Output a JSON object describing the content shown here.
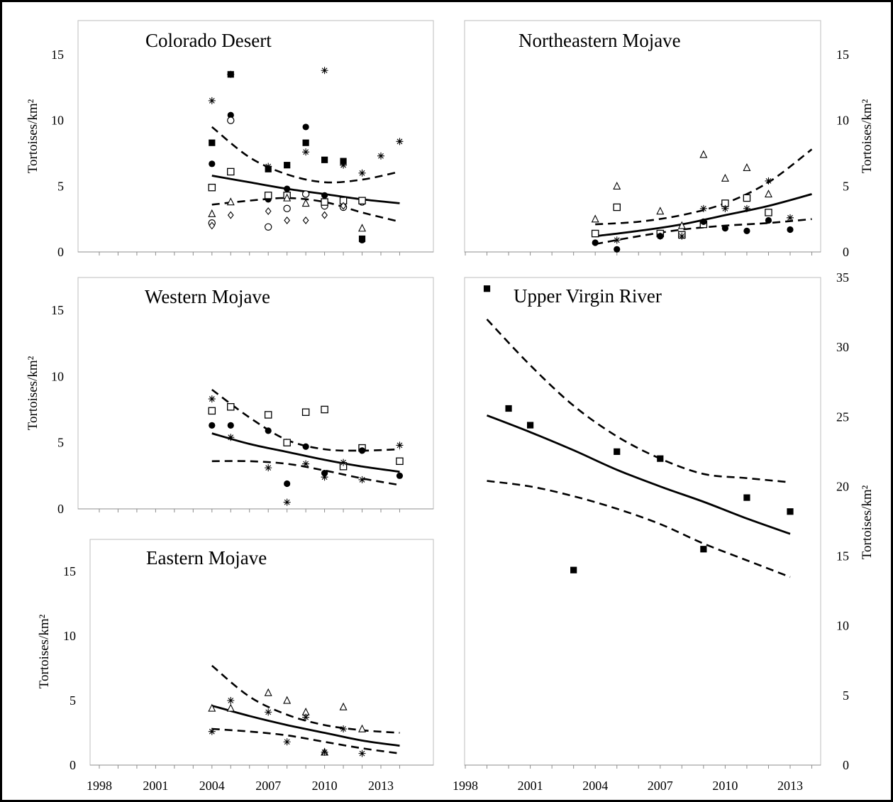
{
  "chart_data": [
    {
      "type": "scatter",
      "title": "Colorado Desert",
      "ylabel": "Tortoises/km²",
      "xlim": [
        1998,
        2014.5
      ],
      "ylim": [
        0,
        17.5
      ],
      "yticks": [
        0,
        5,
        10,
        15
      ],
      "x_axis_side": "none",
      "y_axis_side": "left",
      "series": [
        {
          "marker": "filled-square",
          "x": [
            2004,
            2005,
            2007,
            2008,
            2009,
            2010,
            2011,
            2012
          ],
          "y": [
            8.3,
            13.5,
            6.3,
            6.6,
            8.3,
            7.0,
            6.9,
            1.0
          ]
        },
        {
          "marker": "asterisk",
          "x": [
            2004,
            2005,
            2007,
            2008,
            2009,
            2010,
            2011,
            2012,
            2013,
            2014
          ],
          "y": [
            11.5,
            13.5,
            6.5,
            4.2,
            7.6,
            13.8,
            6.6,
            6.0,
            7.3,
            8.4
          ]
        },
        {
          "marker": "filled-circle",
          "x": [
            2004,
            2005,
            2007,
            2008,
            2009,
            2010,
            2011,
            2012
          ],
          "y": [
            6.7,
            10.4,
            4.0,
            4.8,
            9.5,
            4.3,
            4.0,
            0.9
          ]
        },
        {
          "marker": "open-circle",
          "x": [
            2004,
            2005,
            2007,
            2008,
            2009,
            2010,
            2011,
            2012
          ],
          "y": [
            2.2,
            10.0,
            1.9,
            3.3,
            4.4,
            3.5,
            3.4,
            3.8
          ]
        },
        {
          "marker": "open-square",
          "x": [
            2004,
            2005,
            2007,
            2008,
            2010,
            2011,
            2012
          ],
          "y": [
            4.9,
            6.1,
            4.3,
            4.3,
            3.8,
            3.9,
            3.9
          ]
        },
        {
          "marker": "open-triangle",
          "x": [
            2004,
            2005,
            2008,
            2009,
            2012
          ],
          "y": [
            2.9,
            3.8,
            4.1,
            3.7,
            1.8
          ]
        },
        {
          "marker": "open-diamond",
          "x": [
            2004,
            2005,
            2007,
            2008,
            2009,
            2010,
            2011
          ],
          "y": [
            2.0,
            2.8,
            3.1,
            2.4,
            2.4,
            2.8,
            3.5
          ]
        }
      ],
      "trend": {
        "x": [
          2004,
          2006,
          2008,
          2010,
          2012,
          2014
        ],
        "y": [
          5.8,
          5.3,
          4.8,
          4.4,
          4.0,
          3.7
        ]
      },
      "ci_upper": {
        "x": [
          2004,
          2006,
          2008,
          2010,
          2012,
          2014
        ],
        "y": [
          9.5,
          7.2,
          5.9,
          5.3,
          5.5,
          6.1
        ]
      },
      "ci_lower": {
        "x": [
          2004,
          2006,
          2008,
          2010,
          2012,
          2014
        ],
        "y": [
          3.6,
          3.9,
          4.1,
          3.8,
          3.0,
          2.3
        ]
      }
    },
    {
      "type": "scatter",
      "title": "Northeastern Mojave",
      "ylabel": "Tortoises/km²",
      "xlim": [
        1998,
        2014.5
      ],
      "ylim": [
        0,
        17.5
      ],
      "yticks": [
        0,
        5,
        10,
        15
      ],
      "x_axis_side": "none",
      "y_axis_side": "right",
      "series": [
        {
          "marker": "open-triangle",
          "x": [
            2004,
            2005,
            2007,
            2008,
            2009,
            2010,
            2011,
            2012
          ],
          "y": [
            2.5,
            5.0,
            3.1,
            2.0,
            7.4,
            5.6,
            6.4,
            4.4
          ]
        },
        {
          "marker": "open-square",
          "x": [
            2004,
            2005,
            2007,
            2008,
            2009,
            2010,
            2011,
            2012
          ],
          "y": [
            1.4,
            3.4,
            1.4,
            1.3,
            2.1,
            3.7,
            4.1,
            3.0
          ]
        },
        {
          "marker": "asterisk",
          "x": [
            2005,
            2007,
            2008,
            2009,
            2010,
            2011,
            2012,
            2013
          ],
          "y": [
            0.9,
            1.2,
            1.2,
            3.3,
            3.3,
            3.3,
            5.4,
            2.6
          ]
        },
        {
          "marker": "filled-circle",
          "x": [
            2004,
            2005,
            2007,
            2009,
            2010,
            2011,
            2012,
            2013
          ],
          "y": [
            0.7,
            0.2,
            1.2,
            2.3,
            1.8,
            1.6,
            2.4,
            1.7
          ]
        }
      ],
      "trend": {
        "x": [
          2004,
          2006,
          2008,
          2010,
          2012,
          2014
        ],
        "y": [
          1.2,
          1.6,
          2.1,
          2.8,
          3.5,
          4.4
        ]
      },
      "ci_upper": {
        "x": [
          2004,
          2006,
          2008,
          2010,
          2012,
          2014
        ],
        "y": [
          2.1,
          2.3,
          2.8,
          3.7,
          5.3,
          7.8
        ]
      },
      "ci_lower": {
        "x": [
          2004,
          2006,
          2008,
          2010,
          2012,
          2014
        ],
        "y": [
          0.6,
          1.2,
          1.7,
          2.0,
          2.2,
          2.5
        ]
      }
    },
    {
      "type": "scatter",
      "title": "Western Mojave",
      "ylabel": "Tortoises/km²",
      "xlim": [
        1998,
        2014.5
      ],
      "ylim": [
        0,
        17.5
      ],
      "yticks": [
        0,
        5,
        10,
        15
      ],
      "x_axis_side": "none",
      "y_axis_side": "left",
      "series": [
        {
          "marker": "open-square",
          "x": [
            2004,
            2005,
            2007,
            2008,
            2009,
            2010,
            2011,
            2012,
            2014
          ],
          "y": [
            7.4,
            7.7,
            7.1,
            5.0,
            7.3,
            7.5,
            3.2,
            4.6,
            3.6
          ]
        },
        {
          "marker": "asterisk",
          "x": [
            2004,
            2005,
            2007,
            2008,
            2009,
            2010,
            2011,
            2012,
            2014
          ],
          "y": [
            8.3,
            5.4,
            3.1,
            0.5,
            3.4,
            2.4,
            3.5,
            2.2,
            4.8
          ]
        },
        {
          "marker": "filled-circle",
          "x": [
            2004,
            2005,
            2007,
            2008,
            2009,
            2010,
            2012,
            2014
          ],
          "y": [
            6.3,
            6.3,
            5.9,
            1.9,
            4.7,
            2.7,
            4.4,
            2.5
          ]
        }
      ],
      "trend": {
        "x": [
          2004,
          2006,
          2008,
          2010,
          2012,
          2014
        ],
        "y": [
          5.7,
          4.9,
          4.3,
          3.7,
          3.2,
          2.8
        ]
      },
      "ci_upper": {
        "x": [
          2004,
          2006,
          2008,
          2010,
          2012,
          2014
        ],
        "y": [
          9.0,
          6.9,
          5.2,
          4.5,
          4.4,
          4.5
        ]
      },
      "ci_lower": {
        "x": [
          2004,
          2006,
          2008,
          2010,
          2012,
          2014
        ],
        "y": [
          3.6,
          3.6,
          3.4,
          2.9,
          2.3,
          1.8
        ]
      }
    },
    {
      "type": "scatter",
      "title": "Eastern Mojave",
      "ylabel": "Tortoises/km²",
      "xlim": [
        1998,
        2014.5
      ],
      "ylim": [
        0,
        17.5
      ],
      "yticks": [
        0,
        5,
        10,
        15
      ],
      "xticks": [
        1998,
        2001,
        2004,
        2007,
        2010,
        2013
      ],
      "x_axis_side": "bottom",
      "y_axis_side": "left",
      "series": [
        {
          "marker": "open-triangle",
          "x": [
            2004,
            2005,
            2007,
            2008,
            2009,
            2010,
            2011,
            2012
          ],
          "y": [
            4.4,
            4.4,
            5.6,
            5.0,
            4.1,
            1.0,
            4.5,
            2.8
          ]
        },
        {
          "marker": "asterisk",
          "x": [
            2004,
            2005,
            2007,
            2008,
            2009,
            2010,
            2011,
            2012
          ],
          "y": [
            2.6,
            5.0,
            4.1,
            1.8,
            3.7,
            1.0,
            2.8,
            0.9
          ]
        }
      ],
      "trend": {
        "x": [
          2004,
          2006,
          2008,
          2010,
          2012,
          2014
        ],
        "y": [
          4.6,
          3.8,
          3.1,
          2.5,
          1.9,
          1.5
        ]
      },
      "ci_upper": {
        "x": [
          2004,
          2006,
          2008,
          2010,
          2012,
          2014
        ],
        "y": [
          7.7,
          5.3,
          3.9,
          3.1,
          2.7,
          2.5
        ]
      },
      "ci_lower": {
        "x": [
          2004,
          2006,
          2008,
          2010,
          2012,
          2014
        ],
        "y": [
          2.8,
          2.6,
          2.3,
          1.8,
          1.3,
          0.9
        ]
      }
    },
    {
      "type": "scatter",
      "title": "Upper Virgin River",
      "ylabel": "Tortoises/km²",
      "xlim": [
        1998,
        2014.5
      ],
      "ylim": [
        0,
        35
      ],
      "yticks": [
        0,
        5,
        10,
        15,
        20,
        25,
        30,
        35
      ],
      "xticks": [
        1998,
        2001,
        2004,
        2007,
        2010,
        2013
      ],
      "x_axis_side": "bottom",
      "y_axis_side": "right",
      "series": [
        {
          "marker": "filled-square",
          "x": [
            1999,
            2000,
            2001,
            2003,
            2005,
            2007,
            2009,
            2011,
            2013
          ],
          "y": [
            34.2,
            25.6,
            24.4,
            14.0,
            22.5,
            22.0,
            15.5,
            19.2,
            18.2
          ]
        }
      ],
      "trend": {
        "x": [
          1999,
          2001,
          2003,
          2005,
          2007,
          2009,
          2011,
          2013
        ],
        "y": [
          25.1,
          23.9,
          22.6,
          21.2,
          20.0,
          18.9,
          17.7,
          16.6
        ]
      },
      "ci_upper": {
        "x": [
          1999,
          2001,
          2003,
          2005,
          2007,
          2009,
          2011,
          2013
        ],
        "y": [
          32.0,
          28.7,
          25.8,
          23.6,
          22.0,
          20.9,
          20.6,
          20.3
        ]
      },
      "ci_lower": {
        "x": [
          1999,
          2001,
          2003,
          2005,
          2007,
          2009,
          2011,
          2013
        ],
        "y": [
          20.4,
          20.0,
          19.3,
          18.4,
          17.3,
          15.9,
          14.7,
          13.5
        ]
      }
    }
  ]
}
